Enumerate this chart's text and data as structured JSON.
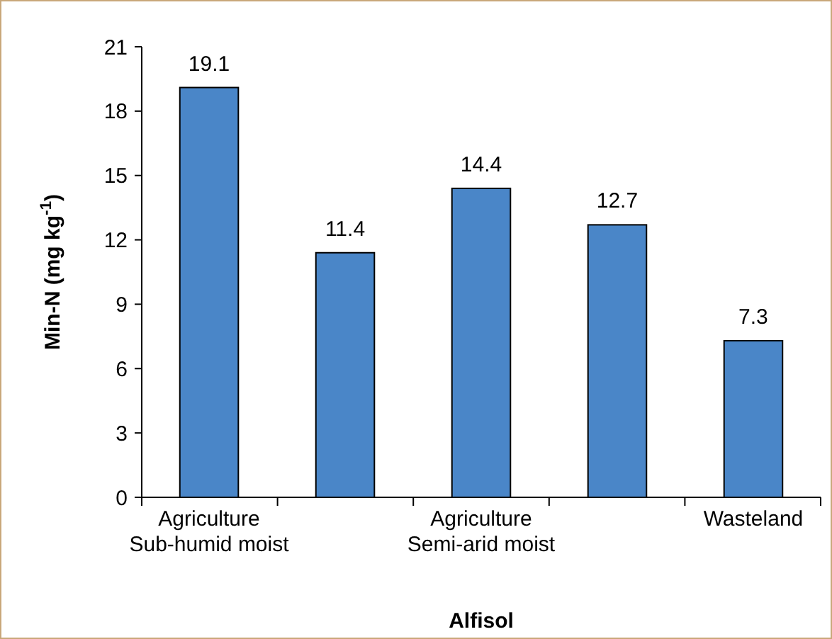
{
  "chart_data": {
    "type": "bar",
    "xlabel": "Alfisol",
    "ylabel": "Min-N  (mg kg$^{-1}$)",
    "categories": [
      "Agriculture\nSub-humid moist",
      null,
      "Agriculture\nSemi-arid moist",
      null,
      "Wasteland"
    ],
    "values": [
      19.1,
      11.4,
      14.4,
      12.7,
      7.3
    ],
    "color": "#4a86c8",
    "ylim": [
      0,
      21
    ],
    "yticks": [
      0,
      3,
      6,
      9,
      12,
      15,
      18,
      21
    ],
    "grid": false,
    "data_labels": true
  }
}
